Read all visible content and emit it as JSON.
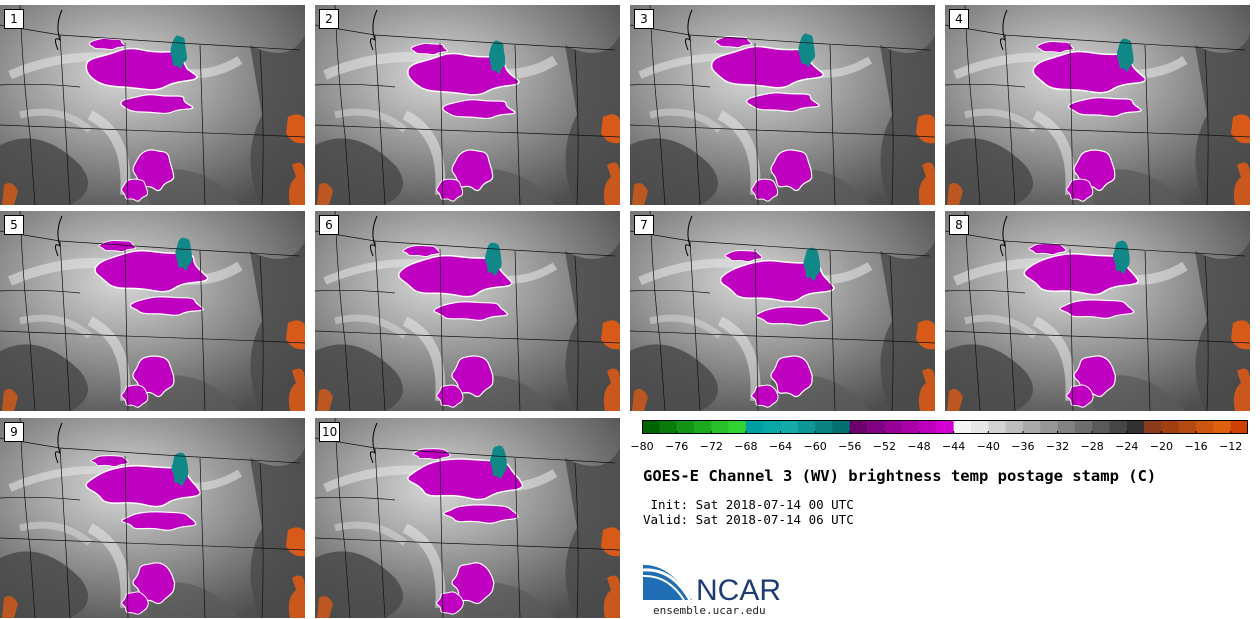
{
  "title": "GOES-E Channel 3 (WV) brightness temp postage stamp (C)",
  "init_line": " Init: Sat 2018-07-14 00 UTC",
  "valid_line": "Valid: Sat 2018-07-14 06 UTC",
  "logo": {
    "text": "NCAR",
    "url": "ensemble.ucar.edu",
    "icon": "ncar-swoosh-logo"
  },
  "panels": [
    "1",
    "2",
    "3",
    "4",
    "5",
    "6",
    "7",
    "8",
    "9",
    "10"
  ],
  "colorbar": {
    "ticks": [
      "-80",
      "-76",
      "-72",
      "-68",
      "-64",
      "-60",
      "-56",
      "-52",
      "-48",
      "-44",
      "-40",
      "-36",
      "-32",
      "-28",
      "-24",
      "-20",
      "-16",
      "-12"
    ],
    "min": -80,
    "max": -10,
    "step": 2,
    "colors": [
      "#006400",
      "#0a7a0a",
      "#149414",
      "#1eaa1e",
      "#28c028",
      "#32d232",
      "#00a0a0",
      "#0aa8a8",
      "#14aaaa",
      "#0f9696",
      "#0a8282",
      "#057070",
      "#6e006e",
      "#820082",
      "#960096",
      "#aa00aa",
      "#be00be",
      "#d200d2",
      "#f5f5f5",
      "#e6e6e6",
      "#d2d2d2",
      "#bebebe",
      "#aaaaaa",
      "#969696",
      "#828282",
      "#6e6e6e",
      "#5a5a5a",
      "#464646",
      "#323232",
      "#8b3a1a",
      "#a04010",
      "#b44a10",
      "#cc5510",
      "#e06010",
      "#d04000"
    ]
  },
  "colors": {
    "moisture_magenta": "#c000c0",
    "cold_teal": "#108888",
    "warm_orange": "#d85a18",
    "dry_gray": "#4a4a4a",
    "logo_blue": "#1f6eb4"
  }
}
